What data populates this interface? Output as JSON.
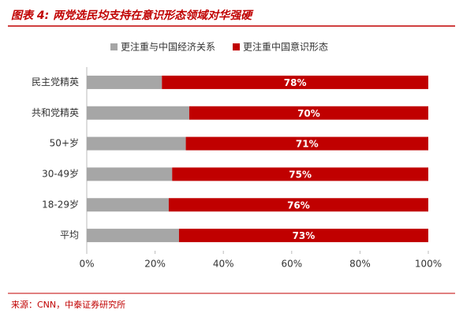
{
  "chart_data": {
    "type": "stacked_barh",
    "title": "图表 4: 两党选民均支持在意识形态领域对华强硬",
    "source": "来源：CNN，中泰证券研究所",
    "categories": [
      "民主党精英",
      "共和党精英",
      "50+岁",
      "30-49岁",
      "18-29岁",
      "平均"
    ],
    "series": [
      {
        "name": "更注重与中国经济关系",
        "color": "#a6a6a6",
        "values": [
          22,
          30,
          29,
          25,
          24,
          27
        ]
      },
      {
        "name": "更注重中国意识形态",
        "color": "#c00000",
        "values": [
          78,
          70,
          71,
          75,
          76,
          73
        ],
        "value_labels": [
          "78%",
          "70%",
          "71%",
          "75%",
          "76%",
          "73%"
        ]
      }
    ],
    "xlim": [
      0,
      100
    ],
    "xticks": [
      {
        "value": 0,
        "label": "0%"
      },
      {
        "value": 20,
        "label": "20%"
      },
      {
        "value": 40,
        "label": "40%"
      },
      {
        "value": 60,
        "label": "60%"
      },
      {
        "value": 80,
        "label": "80%"
      },
      {
        "value": 100,
        "label": "100%"
      }
    ]
  }
}
